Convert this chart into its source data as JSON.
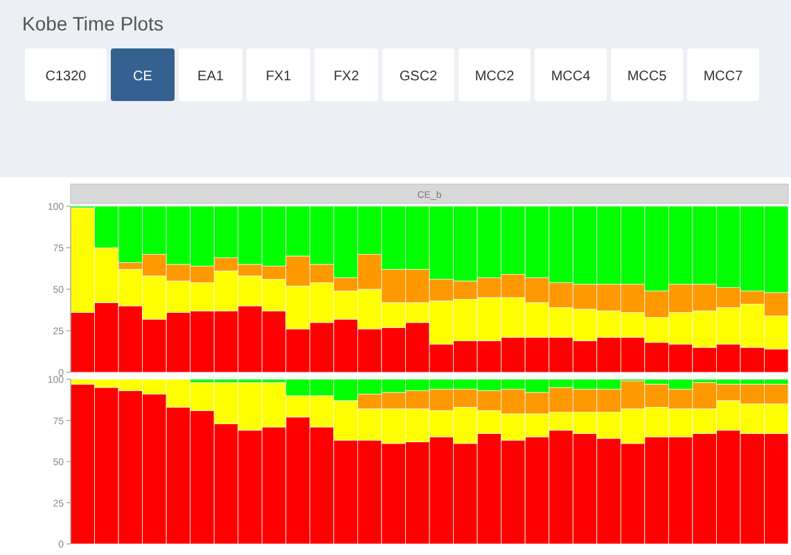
{
  "chart_data": [
    {
      "type": "other",
      "title": "Kobe Time Plots",
      "annotations": [
        "C1320",
        "CE",
        "EA1",
        "FX1",
        "FX2",
        "GSC2",
        "MCC2",
        "MCC4",
        "MCC5",
        "MCC7"
      ]
    },
    {
      "type": "bar",
      "title": "CE_b",
      "stacked": true,
      "categories": [
        null,
        null,
        null,
        null,
        null,
        null,
        null,
        null,
        null,
        null,
        null,
        null,
        null,
        null,
        null,
        null,
        null,
        null,
        null,
        null,
        null,
        null,
        null,
        null,
        null,
        null,
        null,
        null,
        null,
        null
      ],
      "ylim": [
        0,
        100
      ],
      "yticks": [
        0,
        25,
        50,
        75,
        100
      ],
      "series": [
        {
          "color": "#ff0000",
          "values": [
            36,
            42,
            40,
            32,
            36,
            37,
            37,
            40,
            37,
            26,
            30,
            32,
            26,
            27,
            30,
            17,
            19,
            19,
            21,
            21,
            21,
            19,
            21,
            21,
            18,
            17,
            15,
            17,
            15,
            14
          ]
        },
        {
          "color": "#ffff00",
          "values": [
            63,
            33,
            22,
            26,
            19,
            17,
            24,
            18,
            19,
            26,
            24,
            17,
            24,
            15,
            12,
            26,
            25,
            26,
            24,
            21,
            18,
            19,
            16,
            15,
            15,
            19,
            22,
            22,
            26,
            20
          ]
        },
        {
          "color": "#ff9900",
          "values": [
            0,
            0,
            4,
            13,
            10,
            10,
            8,
            7,
            8,
            18,
            11,
            8,
            21,
            20,
            20,
            13,
            11,
            12,
            14,
            15,
            15,
            15,
            16,
            17,
            16,
            17,
            16,
            12,
            8,
            14
          ]
        },
        {
          "color": "#00ff00",
          "values": [
            1,
            25,
            34,
            29,
            35,
            36,
            31,
            35,
            36,
            30,
            35,
            43,
            29,
            38,
            38,
            44,
            45,
            43,
            41,
            43,
            46,
            47,
            47,
            47,
            51,
            47,
            47,
            49,
            51,
            52
          ]
        }
      ]
    },
    {
      "type": "bar",
      "stacked": true,
      "categories": [
        null,
        null,
        null,
        null,
        null,
        null,
        null,
        null,
        null,
        null,
        null,
        null,
        null,
        null,
        null,
        null,
        null,
        null,
        null,
        null,
        null,
        null,
        null,
        null,
        null,
        null,
        null,
        null,
        null,
        null
      ],
      "ylim": [
        0,
        100
      ],
      "yticks": [
        0,
        25,
        50,
        75,
        100
      ],
      "series": [
        {
          "color": "#ff0000",
          "values": [
            97,
            95,
            93,
            91,
            83,
            81,
            73,
            69,
            71,
            77,
            71,
            63,
            63,
            61,
            62,
            65,
            61,
            67,
            63,
            65,
            69,
            67,
            64,
            61,
            65,
            65,
            67,
            69,
            67,
            67
          ]
        },
        {
          "color": "#ffff00",
          "values": [
            3,
            5,
            7,
            9,
            17,
            17,
            25,
            29,
            27,
            13,
            19,
            24,
            19,
            21,
            20,
            16,
            22,
            14,
            16,
            14,
            11,
            13,
            16,
            21,
            18,
            17,
            15,
            18,
            18,
            18
          ]
        },
        {
          "color": "#ff9900",
          "values": [
            0,
            0,
            0,
            0,
            0,
            0,
            0,
            0,
            0,
            0,
            0,
            0,
            9,
            10,
            11,
            13,
            11,
            12,
            15,
            13,
            15,
            14,
            14,
            17,
            14,
            12,
            16,
            10,
            12,
            12
          ]
        },
        {
          "color": "#00ff00",
          "values": [
            0,
            0,
            0,
            0,
            0,
            2,
            2,
            2,
            2,
            10,
            10,
            13,
            9,
            8,
            7,
            6,
            6,
            7,
            6,
            8,
            5,
            6,
            6,
            1,
            3,
            6,
            2,
            3,
            3,
            3
          ]
        }
      ]
    }
  ]
}
